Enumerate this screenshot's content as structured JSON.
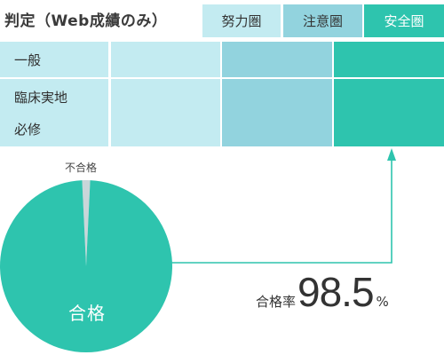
{
  "title": "判定（Web成績のみ）",
  "legend": [
    {
      "label": "努力圏",
      "color": "#c3ebf1"
    },
    {
      "label": "注意圏",
      "color": "#92d3de"
    },
    {
      "label": "安全圏",
      "color": "#2ec4ae"
    }
  ],
  "rows": [
    {
      "label": "一般",
      "cells": [
        "努力圏",
        "注意圏",
        "安全圏"
      ]
    },
    {
      "label": "臨床実地",
      "cells": [
        "努力圏",
        "注意圏",
        "安全圏"
      ]
    },
    {
      "label": "必修",
      "cells": [
        "努力圏",
        "注意圏",
        "安全圏"
      ]
    }
  ],
  "row_label_bg": "#c3ebf1",
  "chart_data": {
    "type": "pie",
    "slices": [
      {
        "label": "合格",
        "value": 98.5,
        "color": "#2ec4ae"
      },
      {
        "label": "不合格",
        "value": 1.5,
        "color": "#c9d6d9"
      }
    ]
  },
  "pass_rate": {
    "label": "合格率",
    "value": "98.5",
    "unit": "%"
  },
  "arrow_color": "#2ec4ae"
}
